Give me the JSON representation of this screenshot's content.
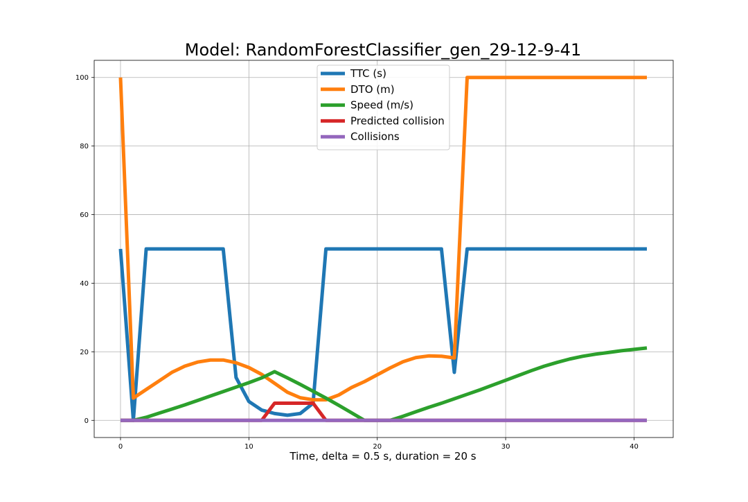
{
  "chart_data": {
    "type": "line",
    "title": "Model: RandomForestClassifier_gen_29-12-9-41",
    "xlabel": "Time, delta = 0.5 s, duration = 20 s",
    "ylabel": "",
    "xlim": [
      -2.05,
      43.05
    ],
    "ylim": [
      -5,
      105
    ],
    "xticks": [
      0,
      10,
      20,
      30,
      40
    ],
    "yticks": [
      0,
      20,
      40,
      60,
      80,
      100
    ],
    "grid": true,
    "legend_position": "upper center",
    "series": [
      {
        "name": "TTC (s)",
        "color": "#1f77b4",
        "x": [
          0,
          1,
          2,
          3,
          4,
          5,
          6,
          7,
          8,
          9,
          10,
          11,
          12,
          13,
          14,
          15,
          16,
          17,
          18,
          19,
          20,
          21,
          22,
          23,
          24,
          25,
          26,
          27,
          28,
          29,
          30,
          31,
          32,
          33,
          34,
          35,
          36,
          37,
          38,
          39,
          40,
          41
        ],
        "y": [
          50,
          0,
          50,
          50,
          50,
          50,
          50,
          50,
          50,
          12.5,
          5.5,
          3,
          2,
          1.5,
          2,
          5,
          50,
          50,
          50,
          50,
          50,
          50,
          50,
          50,
          50,
          50,
          14,
          50,
          50,
          50,
          50,
          50,
          50,
          50,
          50,
          50,
          50,
          50,
          50,
          50,
          50,
          50
        ]
      },
      {
        "name": "DTO (m)",
        "color": "#ff7f0e",
        "x": [
          0,
          1,
          2,
          3,
          4,
          5,
          6,
          7,
          8,
          9,
          10,
          11,
          12,
          13,
          14,
          15,
          16,
          17,
          18,
          19,
          20,
          21,
          22,
          23,
          24,
          25,
          26,
          27,
          28,
          29,
          30,
          31,
          32,
          33,
          34,
          35,
          36,
          37,
          38,
          39,
          40,
          41
        ],
        "y": [
          100,
          6.5,
          9,
          11.5,
          14,
          15.8,
          17,
          17.6,
          17.6,
          16.8,
          15.4,
          13.4,
          10.8,
          8.2,
          6.6,
          6,
          6,
          7.4,
          9.6,
          11.3,
          13.3,
          15.3,
          17.1,
          18.3,
          18.8,
          18.7,
          18.2,
          100,
          100,
          100,
          100,
          100,
          100,
          100,
          100,
          100,
          100,
          100,
          100,
          100,
          100,
          100
        ]
      },
      {
        "name": "Speed (m/s)",
        "color": "#2ca02c",
        "x": [
          0,
          1,
          2,
          3,
          4,
          5,
          6,
          7,
          8,
          9,
          10,
          11,
          12,
          13,
          14,
          15,
          16,
          17,
          18,
          19,
          20,
          21,
          22,
          23,
          24,
          25,
          26,
          27,
          28,
          29,
          30,
          31,
          32,
          33,
          34,
          35,
          36,
          37,
          38,
          39,
          40,
          41
        ],
        "y": [
          0,
          0,
          0.9,
          2.1,
          3.3,
          4.5,
          5.8,
          7.1,
          8.4,
          9.7,
          11,
          12.4,
          14.2,
          12.4,
          10.5,
          8.5,
          6.5,
          4.4,
          2.2,
          0,
          0,
          0,
          1.2,
          2.5,
          3.8,
          5,
          6.3,
          7.6,
          8.9,
          10.3,
          11.7,
          13.1,
          14.5,
          15.8,
          16.9,
          17.9,
          18.7,
          19.3,
          19.8,
          20.3,
          20.7,
          21.1
        ]
      },
      {
        "name": "Predicted collision",
        "color": "#d62728",
        "x": [
          0,
          1,
          2,
          3,
          4,
          5,
          6,
          7,
          8,
          9,
          10,
          11,
          12,
          13,
          14,
          15,
          16,
          17,
          18,
          19,
          20,
          21,
          22,
          23,
          24,
          25,
          26,
          27,
          28,
          29,
          30,
          31,
          32,
          33,
          34,
          35,
          36,
          37,
          38,
          39,
          40,
          41
        ],
        "y": [
          0,
          0,
          0,
          0,
          0,
          0,
          0,
          0,
          0,
          0,
          0,
          0,
          5,
          5,
          5,
          5,
          0,
          0,
          0,
          0,
          0,
          0,
          0,
          0,
          0,
          0,
          0,
          0,
          0,
          0,
          0,
          0,
          0,
          0,
          0,
          0,
          0,
          0,
          0,
          0,
          0,
          0
        ]
      },
      {
        "name": "Collisions",
        "color": "#9467bd",
        "x": [
          0,
          1,
          2,
          3,
          4,
          5,
          6,
          7,
          8,
          9,
          10,
          11,
          12,
          13,
          14,
          15,
          16,
          17,
          18,
          19,
          20,
          21,
          22,
          23,
          24,
          25,
          26,
          27,
          28,
          29,
          30,
          31,
          32,
          33,
          34,
          35,
          36,
          37,
          38,
          39,
          40,
          41
        ],
        "y": [
          0,
          0,
          0,
          0,
          0,
          0,
          0,
          0,
          0,
          0,
          0,
          0,
          0,
          0,
          0,
          0,
          0,
          0,
          0,
          0,
          0,
          0,
          0,
          0,
          0,
          0,
          0,
          0,
          0,
          0,
          0,
          0,
          0,
          0,
          0,
          0,
          0,
          0,
          0,
          0,
          0,
          0
        ]
      }
    ]
  }
}
